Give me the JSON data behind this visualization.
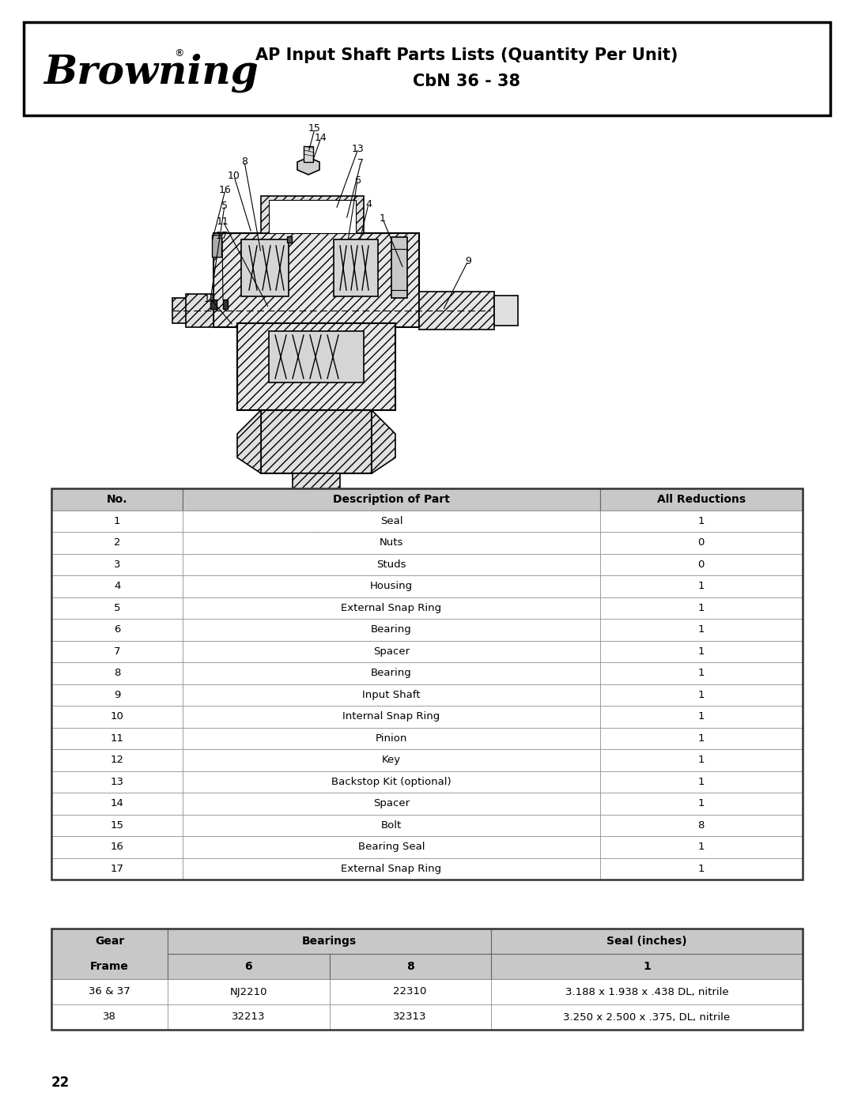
{
  "title_line1": "AP Input Shaft Parts Lists (Quantity Per Unit)",
  "title_line2": "CbN 36 - 38",
  "page_number": "22",
  "header_bg": "#c8c8c8",
  "table1_headers": [
    "No.",
    "Description of Part",
    "All Reductions"
  ],
  "table1_rows": [
    [
      "1",
      "Seal",
      "1"
    ],
    [
      "2",
      "Nuts",
      "0"
    ],
    [
      "3",
      "Studs",
      "0"
    ],
    [
      "4",
      "Housing",
      "1"
    ],
    [
      "5",
      "External Snap Ring",
      "1"
    ],
    [
      "6",
      "Bearing",
      "1"
    ],
    [
      "7",
      "Spacer",
      "1"
    ],
    [
      "8",
      "Bearing",
      "1"
    ],
    [
      "9",
      "Input Shaft",
      "1"
    ],
    [
      "10",
      "Internal Snap Ring",
      "1"
    ],
    [
      "11",
      "Pinion",
      "1"
    ],
    [
      "12",
      "Key",
      "1"
    ],
    [
      "13",
      "Backstop Kit (optional)",
      "1"
    ],
    [
      "14",
      "Spacer",
      "1"
    ],
    [
      "15",
      "Bolt",
      "8"
    ],
    [
      "16",
      "Bearing Seal",
      "1"
    ],
    [
      "17",
      "External Snap Ring",
      "1"
    ]
  ],
  "table2_rows": [
    [
      "36 & 37",
      "NJ2210",
      "22310",
      "3.188 x 1.938 x .438 DL, nitrile"
    ],
    [
      "38",
      "32213",
      "32313",
      "3.250 x 2.500 x .375, DL, nitrile"
    ]
  ],
  "bg_color": "#ffffff",
  "hatch_color": "#000000",
  "line_color": "#000000",
  "text_color": "#000000"
}
